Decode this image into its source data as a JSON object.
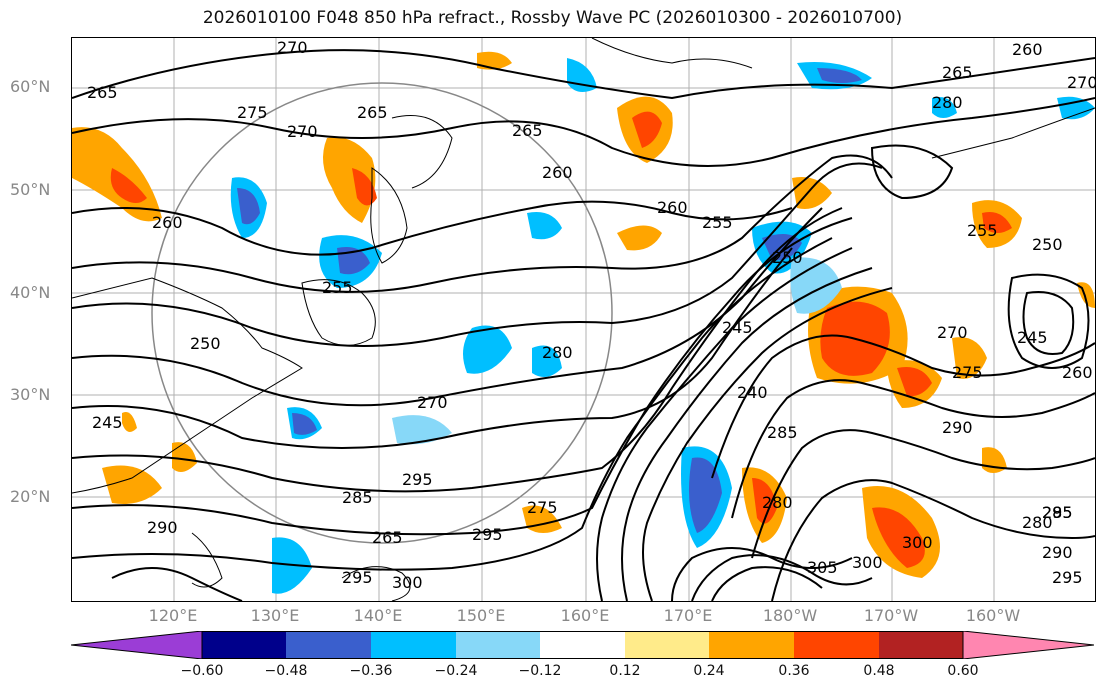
{
  "title": "2026010100 F048 850 hPa refract., Rossby Wave PC (2026010300 - 2026010700)",
  "lat_labels": [
    "60°N",
    "50°N",
    "40°N",
    "30°N",
    "20°N"
  ],
  "lon_labels": [
    "120°E",
    "130°E",
    "140°E",
    "150°E",
    "160°E",
    "170°E",
    "180°W",
    "170°W",
    "160°W"
  ],
  "colorbar": {
    "ticks": [
      "−0.60",
      "−0.48",
      "−0.36",
      "−0.24",
      "−0.12",
      "0.12",
      "0.24",
      "0.36",
      "0.48",
      "0.60"
    ],
    "colors": [
      "#9b3dd6",
      "#00008b",
      "#3a5fcd",
      "#00bfff",
      "#87d8f8",
      "#ffffff",
      "#ffeb8a",
      "#ffa500",
      "#ff4500",
      "#b22222",
      "#ff86b0",
      "#ff86b0"
    ]
  },
  "contour_labels": [
    "270",
    "260",
    "265",
    "265",
    "275",
    "270",
    "265",
    "265",
    "260",
    "260",
    "260",
    "255",
    "255",
    "250",
    "255",
    "250",
    "270",
    "245",
    "245",
    "260",
    "250",
    "280",
    "270",
    "240",
    "275",
    "290",
    "285",
    "245",
    "285",
    "295",
    "280",
    "285",
    "290",
    "295",
    "300",
    "295",
    "290",
    "300",
    "295",
    "280",
    "265",
    "275",
    "270",
    "280",
    "295",
    "305",
    "300"
  ]
}
